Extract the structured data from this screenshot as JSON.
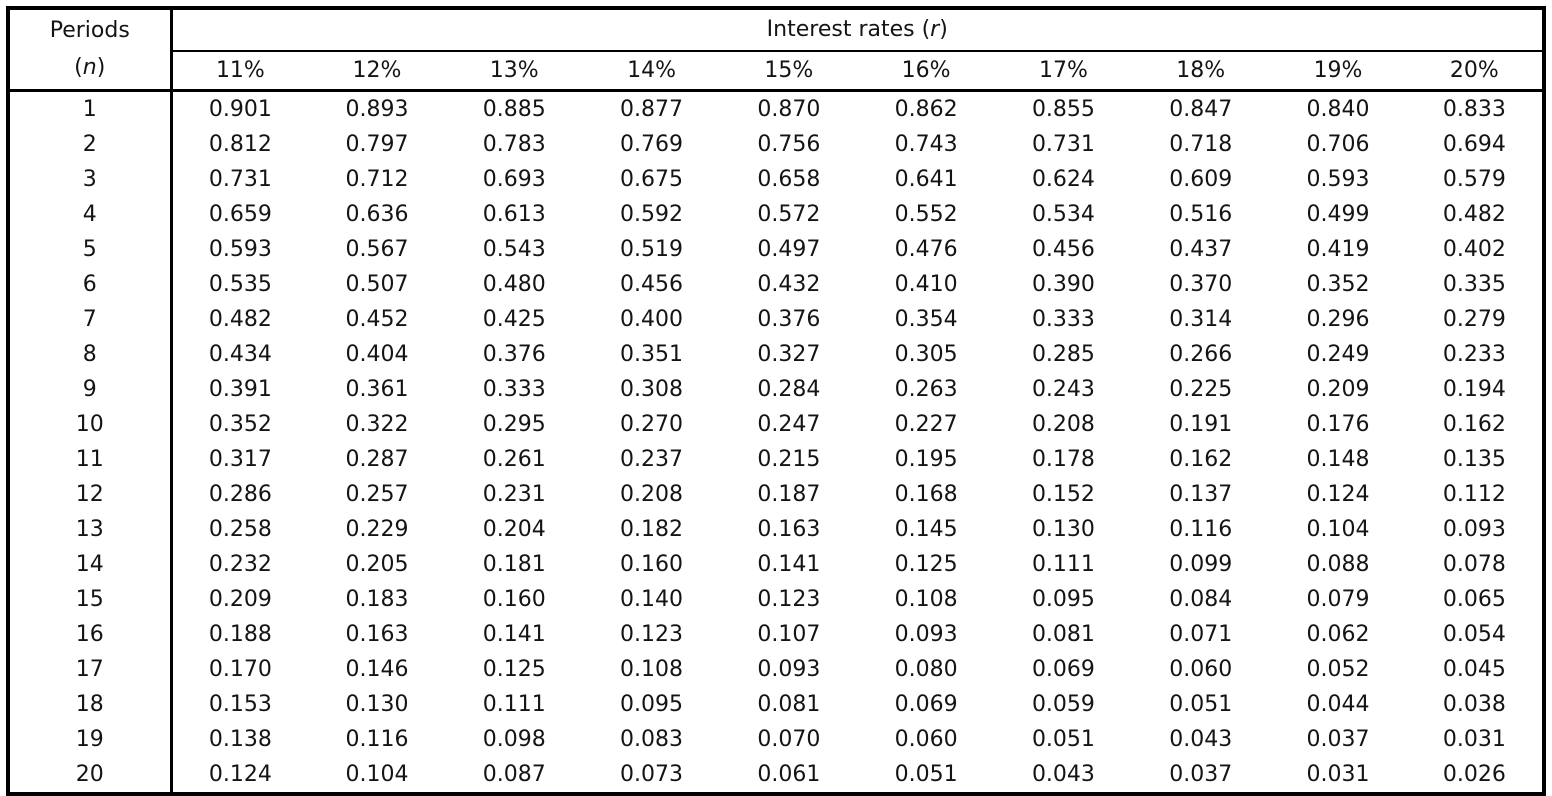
{
  "page": {
    "background": "#ffffff",
    "text_color": "#141414",
    "border_color": "#000000"
  },
  "table": {
    "periods_header": {
      "line1": "Periods",
      "prefix": "(",
      "variable": "n",
      "suffix": ")"
    },
    "interest_header": {
      "prefix": "Interest rates (",
      "variable": "r",
      "suffix": ")"
    },
    "rate_columns": [
      "11%",
      "12%",
      "13%",
      "14%",
      "15%",
      "16%",
      "17%",
      "18%",
      "19%",
      "20%"
    ],
    "rows": [
      {
        "n": "1",
        "values": [
          "0.901",
          "0.893",
          "0.885",
          "0.877",
          "0.870",
          "0.862",
          "0.855",
          "0.847",
          "0.840",
          "0.833"
        ]
      },
      {
        "n": "2",
        "values": [
          "0.812",
          "0.797",
          "0.783",
          "0.769",
          "0.756",
          "0.743",
          "0.731",
          "0.718",
          "0.706",
          "0.694"
        ]
      },
      {
        "n": "3",
        "values": [
          "0.731",
          "0.712",
          "0.693",
          "0.675",
          "0.658",
          "0.641",
          "0.624",
          "0.609",
          "0.593",
          "0.579"
        ]
      },
      {
        "n": "4",
        "values": [
          "0.659",
          "0.636",
          "0.613",
          "0.592",
          "0.572",
          "0.552",
          "0.534",
          "0.516",
          "0.499",
          "0.482"
        ]
      },
      {
        "n": "5",
        "values": [
          "0.593",
          "0.567",
          "0.543",
          "0.519",
          "0.497",
          "0.476",
          "0.456",
          "0.437",
          "0.419",
          "0.402"
        ]
      },
      {
        "n": "6",
        "values": [
          "0.535",
          "0.507",
          "0.480",
          "0.456",
          "0.432",
          "0.410",
          "0.390",
          "0.370",
          "0.352",
          "0.335"
        ]
      },
      {
        "n": "7",
        "values": [
          "0.482",
          "0.452",
          "0.425",
          "0.400",
          "0.376",
          "0.354",
          "0.333",
          "0.314",
          "0.296",
          "0.279"
        ]
      },
      {
        "n": "8",
        "values": [
          "0.434",
          "0.404",
          "0.376",
          "0.351",
          "0.327",
          "0.305",
          "0.285",
          "0.266",
          "0.249",
          "0.233"
        ]
      },
      {
        "n": "9",
        "values": [
          "0.391",
          "0.361",
          "0.333",
          "0.308",
          "0.284",
          "0.263",
          "0.243",
          "0.225",
          "0.209",
          "0.194"
        ]
      },
      {
        "n": "10",
        "values": [
          "0.352",
          "0.322",
          "0.295",
          "0.270",
          "0.247",
          "0.227",
          "0.208",
          "0.191",
          "0.176",
          "0.162"
        ]
      },
      {
        "n": "11",
        "values": [
          "0.317",
          "0.287",
          "0.261",
          "0.237",
          "0.215",
          "0.195",
          "0.178",
          "0.162",
          "0.148",
          "0.135"
        ]
      },
      {
        "n": "12",
        "values": [
          "0.286",
          "0.257",
          "0.231",
          "0.208",
          "0.187",
          "0.168",
          "0.152",
          "0.137",
          "0.124",
          "0.112"
        ]
      },
      {
        "n": "13",
        "values": [
          "0.258",
          "0.229",
          "0.204",
          "0.182",
          "0.163",
          "0.145",
          "0.130",
          "0.116",
          "0.104",
          "0.093"
        ]
      },
      {
        "n": "14",
        "values": [
          "0.232",
          "0.205",
          "0.181",
          "0.160",
          "0.141",
          "0.125",
          "0.111",
          "0.099",
          "0.088",
          "0.078"
        ]
      },
      {
        "n": "15",
        "values": [
          "0.209",
          "0.183",
          "0.160",
          "0.140",
          "0.123",
          "0.108",
          "0.095",
          "0.084",
          "0.079",
          "0.065"
        ]
      },
      {
        "n": "16",
        "values": [
          "0.188",
          "0.163",
          "0.141",
          "0.123",
          "0.107",
          "0.093",
          "0.081",
          "0.071",
          "0.062",
          "0.054"
        ]
      },
      {
        "n": "17",
        "values": [
          "0.170",
          "0.146",
          "0.125",
          "0.108",
          "0.093",
          "0.080",
          "0.069",
          "0.060",
          "0.052",
          "0.045"
        ]
      },
      {
        "n": "18",
        "values": [
          "0.153",
          "0.130",
          "0.111",
          "0.095",
          "0.081",
          "0.069",
          "0.059",
          "0.051",
          "0.044",
          "0.038"
        ]
      },
      {
        "n": "19",
        "values": [
          "0.138",
          "0.116",
          "0.098",
          "0.083",
          "0.070",
          "0.060",
          "0.051",
          "0.043",
          "0.037",
          "0.031"
        ]
      },
      {
        "n": "20",
        "values": [
          "0.124",
          "0.104",
          "0.087",
          "0.073",
          "0.061",
          "0.051",
          "0.043",
          "0.037",
          "0.031",
          "0.026"
        ]
      }
    ]
  }
}
